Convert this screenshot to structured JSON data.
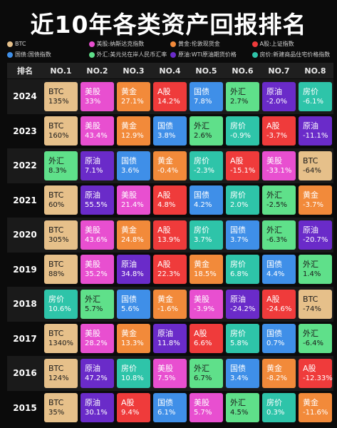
{
  "title": "近10年各类资产回报排名",
  "colors": {
    "BTC": "#e6c08a",
    "美股": "#e84fd0",
    "黄金": "#f28a3a",
    "A股": "#ef3b3b",
    "国债": "#3f8fe8",
    "外汇": "#5fe08a",
    "原油": "#6a2bc9",
    "房价": "#2ec4a9"
  },
  "legend": [
    {
      "asset": "BTC",
      "label": "BTC"
    },
    {
      "asset": "美股",
      "label": "美股:纳斯达克指数"
    },
    {
      "asset": "黄金",
      "label": "黄金:伦敦现货金"
    },
    {
      "asset": "A股",
      "label": "A股:上证指数"
    },
    {
      "asset": "国债",
      "label": "国债:国债指数"
    },
    {
      "asset": "外汇",
      "label": "外汇:美元兑在岸人民币汇率"
    },
    {
      "asset": "原油",
      "label": "原油:WTI原油期货价格"
    },
    {
      "asset": "房价",
      "label": "房价:新建商品住宅价格指数"
    }
  ],
  "header": {
    "year_label": "排名",
    "ranks": [
      "NO.1",
      "NO.2",
      "NO.3",
      "NO.4",
      "NO.5",
      "NO.6",
      "NO.7",
      "NO.8"
    ]
  },
  "chart_data": {
    "type": "table",
    "title": "近10年各类资产回报排名",
    "columns": [
      "NO.1",
      "NO.2",
      "NO.3",
      "NO.4",
      "NO.5",
      "NO.6",
      "NO.7",
      "NO.8"
    ],
    "rows": [
      {
        "year": "2024",
        "cells": [
          {
            "asset": "BTC",
            "value": "135%"
          },
          {
            "asset": "美股",
            "value": "33%"
          },
          {
            "asset": "黄金",
            "value": "27.1%"
          },
          {
            "asset": "A股",
            "value": "14.2%"
          },
          {
            "asset": "国债",
            "value": "7.8%"
          },
          {
            "asset": "外汇",
            "value": "2.7%"
          },
          {
            "asset": "原油",
            "value": "-2.0%"
          },
          {
            "asset": "房价",
            "value": "-6.1%"
          }
        ]
      },
      {
        "year": "2023",
        "cells": [
          {
            "asset": "BTC",
            "value": "160%"
          },
          {
            "asset": "美股",
            "value": "43.4%"
          },
          {
            "asset": "黄金",
            "value": "12.9%"
          },
          {
            "asset": "国债",
            "value": "3.8%"
          },
          {
            "asset": "外汇",
            "value": "2.6%"
          },
          {
            "asset": "房价",
            "value": "-0.9%"
          },
          {
            "asset": "A股",
            "value": "-3.7%"
          },
          {
            "asset": "原油",
            "value": "-11.1%"
          }
        ]
      },
      {
        "year": "2022",
        "cells": [
          {
            "asset": "外汇",
            "value": "8.3%"
          },
          {
            "asset": "原油",
            "value": "7.1%"
          },
          {
            "asset": "国债",
            "value": "3.6%"
          },
          {
            "asset": "黄金",
            "value": "-0.4%"
          },
          {
            "asset": "房价",
            "value": "-2.3%"
          },
          {
            "asset": "A股",
            "value": "-15.1%"
          },
          {
            "asset": "美股",
            "value": "-33.1%"
          },
          {
            "asset": "BTC",
            "value": "-64%"
          }
        ]
      },
      {
        "year": "2021",
        "cells": [
          {
            "asset": "BTC",
            "value": "60%"
          },
          {
            "asset": "原油",
            "value": "55.5%"
          },
          {
            "asset": "美股",
            "value": "21.4%"
          },
          {
            "asset": "A股",
            "value": "4.8%"
          },
          {
            "asset": "国债",
            "value": "4.2%"
          },
          {
            "asset": "房价",
            "value": "2.0%"
          },
          {
            "asset": "外汇",
            "value": "-2.5%"
          },
          {
            "asset": "黄金",
            "value": "-3.7%"
          }
        ]
      },
      {
        "year": "2020",
        "cells": [
          {
            "asset": "BTC",
            "value": "305%"
          },
          {
            "asset": "美股",
            "value": "43.6%"
          },
          {
            "asset": "黄金",
            "value": "24.8%"
          },
          {
            "asset": "A股",
            "value": "13.9%"
          },
          {
            "asset": "房价",
            "value": "3.7%"
          },
          {
            "asset": "国债",
            "value": "3.7%"
          },
          {
            "asset": "外汇",
            "value": "-6.3%"
          },
          {
            "asset": "原油",
            "value": "-20.7%"
          }
        ]
      },
      {
        "year": "2019",
        "cells": [
          {
            "asset": "BTC",
            "value": "88%"
          },
          {
            "asset": "美股",
            "value": "35.2%"
          },
          {
            "asset": "原油",
            "value": "34.8%"
          },
          {
            "asset": "A股",
            "value": "22.3%"
          },
          {
            "asset": "黄金",
            "value": "18.5%"
          },
          {
            "asset": "房价",
            "value": "6.8%"
          },
          {
            "asset": "国债",
            "value": "4.4%"
          },
          {
            "asset": "外汇",
            "value": "1.4%"
          }
        ]
      },
      {
        "year": "2018",
        "cells": [
          {
            "asset": "房价",
            "value": "10.6%"
          },
          {
            "asset": "外汇",
            "value": "5.7%"
          },
          {
            "asset": "国债",
            "value": "5.6%"
          },
          {
            "asset": "黄金",
            "value": "-1.6%"
          },
          {
            "asset": "美股",
            "value": "-3.9%"
          },
          {
            "asset": "原油",
            "value": "-24.2%"
          },
          {
            "asset": "A股",
            "value": "-24.6%"
          },
          {
            "asset": "BTC",
            "value": "-74%"
          }
        ]
      },
      {
        "year": "2017",
        "cells": [
          {
            "asset": "BTC",
            "value": "1340%"
          },
          {
            "asset": "美股",
            "value": "28.2%"
          },
          {
            "asset": "黄金",
            "value": "13.3%"
          },
          {
            "asset": "原油",
            "value": "11.8%"
          },
          {
            "asset": "A股",
            "value": "6.6%"
          },
          {
            "asset": "房价",
            "value": "5.8%"
          },
          {
            "asset": "国债",
            "value": "0.7%"
          },
          {
            "asset": "外汇",
            "value": "-6.4%"
          }
        ]
      },
      {
        "year": "2016",
        "cells": [
          {
            "asset": "BTC",
            "value": "124%"
          },
          {
            "asset": "原油",
            "value": "47.2%"
          },
          {
            "asset": "房价",
            "value": "10.8%"
          },
          {
            "asset": "美股",
            "value": "7.5%"
          },
          {
            "asset": "外汇",
            "value": "6.7%"
          },
          {
            "asset": "国债",
            "value": "3.4%"
          },
          {
            "asset": "黄金",
            "value": "-8.2%"
          },
          {
            "asset": "A股",
            "value": "-12.33%"
          }
        ]
      },
      {
        "year": "2015",
        "cells": [
          {
            "asset": "BTC",
            "value": "35%"
          },
          {
            "asset": "原油",
            "value": "30.1%"
          },
          {
            "asset": "A股",
            "value": "9.4%"
          },
          {
            "asset": "国债",
            "value": "6.1%"
          },
          {
            "asset": "美股",
            "value": "5.7%"
          },
          {
            "asset": "外汇",
            "value": "4.5%"
          },
          {
            "asset": "房价",
            "value": "0.3%"
          },
          {
            "asset": "黄金",
            "value": "-11.6%"
          }
        ]
      }
    ]
  }
}
